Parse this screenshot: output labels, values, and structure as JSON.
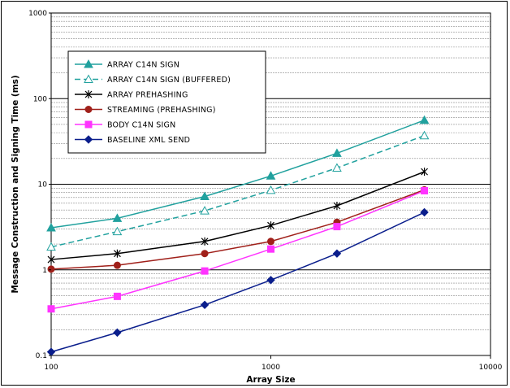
{
  "chart_data": {
    "type": "line",
    "xscale": "log",
    "yscale": "log",
    "xlabel": "Array Size",
    "ylabel": "Message Construction and Signing Time (ms)",
    "xlim": [
      100,
      10000
    ],
    "ylim": [
      0.1,
      1000
    ],
    "x_ticks": [
      "100",
      "1000",
      "10000"
    ],
    "y_ticks": [
      "0.1",
      "1",
      "10",
      "100",
      "1000"
    ],
    "grid": "horizontal major and minor",
    "legend_position": "upper-left",
    "x": [
      100,
      200,
      500,
      1000,
      2000,
      5000
    ],
    "series": [
      {
        "name": "ARRAY C14N SIGN",
        "color": "#21a19e",
        "marker": "triangle-filled",
        "dash": false,
        "values": [
          3.1,
          4.0,
          7.2,
          12.5,
          23,
          56
        ]
      },
      {
        "name": "ARRAY C14N SIGN (BUFFERED)",
        "color": "#21a19e",
        "marker": "triangle-open",
        "dash": true,
        "values": [
          1.85,
          2.8,
          4.9,
          8.5,
          15.5,
          37
        ]
      },
      {
        "name": "ARRAY PREHASHING",
        "color": "#000000",
        "marker": "star",
        "dash": false,
        "values": [
          1.32,
          1.55,
          2.15,
          3.3,
          5.6,
          14
        ]
      },
      {
        "name": "STREAMING (PREHASHING)",
        "color": "#a0201a",
        "marker": "circle",
        "dash": false,
        "values": [
          1.02,
          1.13,
          1.55,
          2.15,
          3.6,
          8.6
        ]
      },
      {
        "name": "BODY C14N SIGN",
        "color": "#ff33ff",
        "marker": "square",
        "dash": false,
        "values": [
          0.35,
          0.49,
          0.97,
          1.75,
          3.2,
          8.4
        ]
      },
      {
        "name": "BASELINE XML SEND",
        "color": "#0a1e8c",
        "marker": "diamond",
        "dash": false,
        "values": [
          0.11,
          0.185,
          0.39,
          0.76,
          1.55,
          4.7
        ]
      }
    ]
  }
}
